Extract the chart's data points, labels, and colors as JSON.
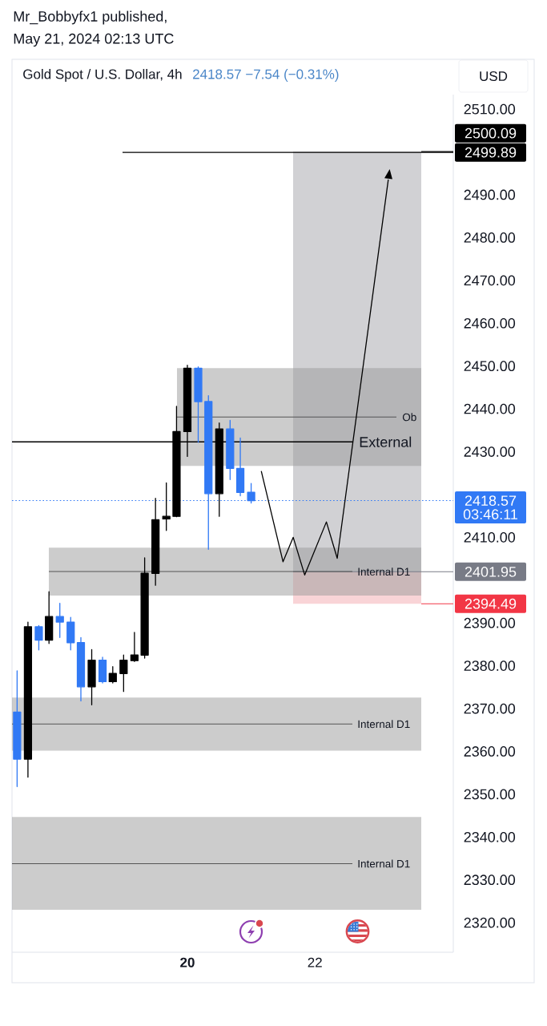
{
  "chart_data": {
    "type": "candlestick",
    "title": "Gold Spot / U.S. Dollar, 4h",
    "subtitle": "2418.57 −7.54 (−0.31%)",
    "annotations": [
      "Mr_Bobbyfx1 published,",
      "May 21, 2024 02:13 UTC",
      "USD",
      "03:46:11"
    ],
    "x": [
      17.33,
      17.5,
      17.67,
      17.83,
      18,
      18.17,
      18.33,
      18.5,
      18.67,
      18.83,
      19,
      19.17,
      19.33,
      19.5,
      19.67,
      19.83,
      20,
      20.17,
      20.33,
      20.5,
      20.67,
      20.83,
      21
    ],
    "ohlc": [
      [
        2369.2,
        2378.8,
        2351.8,
        2358.2
      ],
      [
        2358.2,
        2390.2,
        2354.0,
        2389.1
      ],
      [
        2389.1,
        2389.4,
        2383.7,
        2386.0
      ],
      [
        2386.0,
        2397.3,
        2385.2,
        2391.5
      ],
      [
        2391.5,
        2394.6,
        2386.6,
        2390.2
      ],
      [
        2390.2,
        2391.3,
        2383.7,
        2385.4
      ],
      [
        2385.4,
        2386.6,
        2371.8,
        2375.1
      ],
      [
        2375.1,
        2383.8,
        2370.9,
        2381.3
      ],
      [
        2381.3,
        2382.0,
        2376.0,
        2376.3
      ],
      [
        2376.3,
        2379.8,
        2376.0,
        2378.2
      ],
      [
        2378.2,
        2382.5,
        2374.0,
        2381.3
      ],
      [
        2381.2,
        2387.8,
        2381.0,
        2382.5
      ],
      [
        2382.5,
        2405.2,
        2381.8,
        2401.6
      ],
      [
        2401.6,
        2419.1,
        2398.8,
        2414.1
      ],
      [
        2414.3,
        2422.7,
        2411.6,
        2414.9
      ],
      [
        2414.9,
        2440.6,
        2414.8,
        2434.7
      ],
      [
        2434.7,
        2450.2,
        2428.9,
        2449.5
      ],
      [
        2449.5,
        2449.8,
        2432.2,
        2441.7
      ],
      [
        2441.7,
        2443.1,
        2407.2,
        2420.2
      ],
      [
        2420.2,
        2436.7,
        2414.9,
        2435.3
      ],
      [
        2435.3,
        2437.3,
        2423.5,
        2426.1
      ],
      [
        2426.1,
        2433.2,
        2419.7,
        2420.5
      ],
      [
        2420.5,
        2422.6,
        2418.0,
        2418.57
      ]
    ],
    "colors": [
      "#3179f5",
      "#000000",
      "#3179f5",
      "#000000",
      "#3179f5",
      "#3179f5",
      "#3179f5",
      "#000000",
      "#3179f5",
      "#000000",
      "#000000",
      "#000000",
      "#000000",
      "#000000",
      "#000000",
      "#000000",
      "#000000",
      "#3179f5",
      "#3179f5",
      "#000000",
      "#3179f5",
      "#3179f5",
      "#3179f5"
    ],
    "series": [
      {
        "type": "line",
        "x": [
          21.16,
          21.5,
          21.66,
          21.84,
          22.18,
          22.35,
          23.15
        ],
        "values": [
          2425.4,
          2404.3,
          2410.0,
          2401.2,
          2413.6,
          2405.1,
          2493.5
        ],
        "color": "#000000"
      }
    ],
    "xlim": [
      17.25,
      24.17
    ],
    "xticks": [
      20,
      22
    ],
    "ylim": [
      2313.1,
      2513.4
    ],
    "yticks": [
      {
        "value": 2320,
        "label": "2320.00"
      },
      {
        "value": 2330,
        "label": "2330.00"
      },
      {
        "value": 2340,
        "label": "2340.00"
      },
      {
        "value": 2350,
        "label": "2350.00"
      },
      {
        "value": 2360,
        "label": "2360.00"
      },
      {
        "value": 2370,
        "label": "2370.00"
      },
      {
        "value": 2380,
        "label": "2380.00"
      },
      {
        "value": 2390,
        "label": "2390.00"
      },
      {
        "value": 2410,
        "label": "2410.00"
      },
      {
        "value": 2430,
        "label": "2430.00"
      },
      {
        "value": 2440,
        "label": "2440.00"
      },
      {
        "value": 2450,
        "label": "2450.00"
      },
      {
        "value": 2460,
        "label": "2460.00"
      },
      {
        "value": 2470,
        "label": "2470.00"
      },
      {
        "value": 2480,
        "label": "2480.00"
      },
      {
        "value": 2490,
        "label": "2490.00"
      },
      {
        "value": 2510,
        "label": "2510.00"
      }
    ],
    "ref_lines": [
      {
        "axis": "y",
        "value": 2499.89,
        "label": "2499.89",
        "color": "#000000"
      },
      {
        "axis": "y",
        "value": 2500.09,
        "label": "2500.09",
        "color": "#000000"
      },
      {
        "axis": "y",
        "value": 2418.57,
        "label": "2418.57",
        "color": "#3179f5",
        "line_style": "dotted"
      },
      {
        "axis": "y",
        "value": 2401.95,
        "label": "2401.95",
        "color": "#787b86"
      },
      {
        "axis": "y",
        "value": 2394.49,
        "label": "2394.49",
        "color": "#f23645"
      },
      {
        "axis": "y",
        "value": 2432.3,
        "label": "External",
        "color": "#000000"
      },
      {
        "axis": "y",
        "value": 2438.1,
        "label": "Ob",
        "color": "#555555"
      },
      {
        "axis": "y",
        "value": 2402.0,
        "label": "Internal D1",
        "color": "#555555"
      },
      {
        "axis": "y",
        "value": 2366.4,
        "label": "Internal D1",
        "color": "#555555"
      },
      {
        "axis": "y",
        "value": 2333.8,
        "label": "Internal D1",
        "color": "#555555"
      }
    ],
    "bands": [
      {
        "axis": "y",
        "from": 2401.95,
        "to": 2500.09,
        "color": "#d1d1d4"
      },
      {
        "axis": "y",
        "from": 2394.49,
        "to": 2401.95,
        "color": "#f9d4d7"
      },
      {
        "axis": "y",
        "from": 2426.7,
        "to": 2449.5,
        "color": "#cccccc"
      },
      {
        "axis": "y",
        "from": 2396.4,
        "to": 2407.6,
        "color": "#cccccc"
      },
      {
        "axis": "y",
        "from": 2360.2,
        "to": 2372.6,
        "color": "#cccccc"
      },
      {
        "axis": "y",
        "from": 2323.0,
        "to": 2344.7,
        "color": "#cccccc"
      }
    ]
  }
}
